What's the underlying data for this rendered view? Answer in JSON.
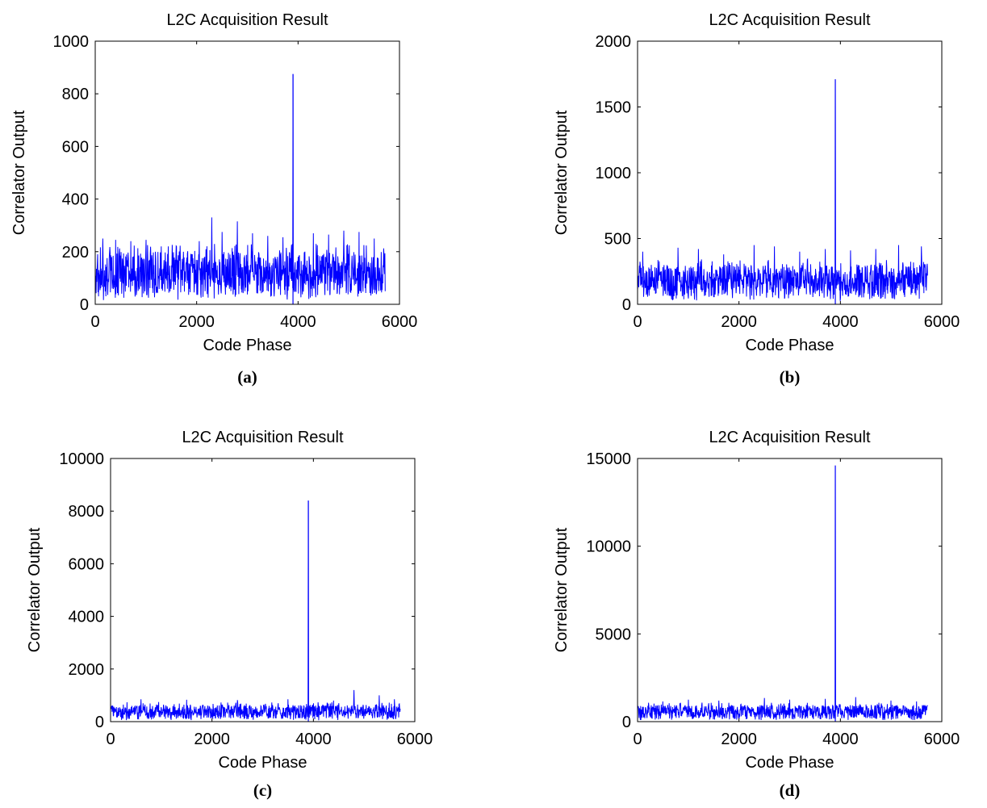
{
  "figure": {
    "background": "#ffffff",
    "line_color": "#0000ff",
    "axis_color": "#000000"
  },
  "chart_data": [
    {
      "type": "line",
      "caption": "(a)",
      "title": "L2C Acquisition Result",
      "xlabel": "Code Phase",
      "ylabel": "Correlator Output",
      "xlim": [
        0,
        6000
      ],
      "ylim": [
        0,
        1000
      ],
      "xticks": [
        0,
        2000,
        4000,
        6000
      ],
      "yticks": [
        0,
        200,
        400,
        600,
        800,
        1000
      ],
      "grid": false,
      "series": [
        {
          "noise_range": [
            0,
            5720
          ],
          "noise_floor_max": 200,
          "noise_spikes": [
            [
              150,
              250
            ],
            [
              400,
              245
            ],
            [
              700,
              240
            ],
            [
              1000,
              245
            ],
            [
              1300,
              220
            ],
            [
              1600,
              220
            ],
            [
              2050,
              240
            ],
            [
              2300,
              330
            ],
            [
              2500,
              275
            ],
            [
              2800,
              315
            ],
            [
              3100,
              270
            ],
            [
              3400,
              260
            ],
            [
              3700,
              255
            ],
            [
              4300,
              270
            ],
            [
              4600,
              265
            ],
            [
              4900,
              280
            ],
            [
              5200,
              275
            ],
            [
              5500,
              250
            ]
          ],
          "peak": {
            "x": 3900,
            "y": 875
          }
        }
      ]
    },
    {
      "type": "line",
      "caption": "(b)",
      "title": "L2C Acquisition Result",
      "xlabel": "Code Phase",
      "ylabel": "Correlator Output",
      "xlim": [
        0,
        6000
      ],
      "ylim": [
        0,
        2000
      ],
      "xticks": [
        0,
        2000,
        4000,
        6000
      ],
      "yticks": [
        0,
        500,
        1000,
        1500,
        2000
      ],
      "grid": false,
      "series": [
        {
          "noise_range": [
            0,
            5720
          ],
          "noise_floor_max": 300,
          "noise_spikes": [
            [
              100,
              400
            ],
            [
              800,
              430
            ],
            [
              1200,
              420
            ],
            [
              1700,
              380
            ],
            [
              2300,
              450
            ],
            [
              2700,
              440
            ],
            [
              3200,
              400
            ],
            [
              3700,
              420
            ],
            [
              4200,
              410
            ],
            [
              4700,
              420
            ],
            [
              5150,
              450
            ],
            [
              5600,
              440
            ]
          ],
          "peak": {
            "x": 3900,
            "y": 1710
          }
        }
      ]
    },
    {
      "type": "line",
      "caption": "(c)",
      "title": "L2C Acquisition Result",
      "xlabel": "Code Phase",
      "ylabel": "Correlator Output",
      "xlim": [
        0,
        6000
      ],
      "ylim": [
        0,
        10000
      ],
      "xticks": [
        0,
        2000,
        4000,
        6000
      ],
      "yticks": [
        0,
        2000,
        4000,
        6000,
        8000,
        10000
      ],
      "grid": false,
      "series": [
        {
          "noise_range": [
            0,
            5720
          ],
          "noise_floor_max": 650,
          "noise_spikes": [
            [
              600,
              850
            ],
            [
              1500,
              830
            ],
            [
              2500,
              820
            ],
            [
              3500,
              850
            ],
            [
              4400,
              800
            ],
            [
              4800,
              1200
            ],
            [
              5300,
              1000
            ],
            [
              5600,
              850
            ]
          ],
          "peak": {
            "x": 3900,
            "y": 8400
          }
        }
      ]
    },
    {
      "type": "line",
      "caption": "(d)",
      "title": "L2C Acquisition Result",
      "xlabel": "Code Phase",
      "ylabel": "Correlator Output",
      "xlim": [
        0,
        6000
      ],
      "ylim": [
        0,
        15000
      ],
      "xticks": [
        0,
        2000,
        4000,
        6000
      ],
      "yticks": [
        0,
        5000,
        10000,
        15000
      ],
      "grid": false,
      "series": [
        {
          "noise_range": [
            0,
            5720
          ],
          "noise_floor_max": 950,
          "noise_spikes": [
            [
              500,
              1150
            ],
            [
              1000,
              1250
            ],
            [
              1600,
              1200
            ],
            [
              2500,
              1350
            ],
            [
              3000,
              1250
            ],
            [
              3700,
              1300
            ],
            [
              4300,
              1400
            ],
            [
              5000,
              1200
            ],
            [
              5500,
              1150
            ]
          ],
          "peak": {
            "x": 3900,
            "y": 14600
          }
        }
      ]
    }
  ]
}
